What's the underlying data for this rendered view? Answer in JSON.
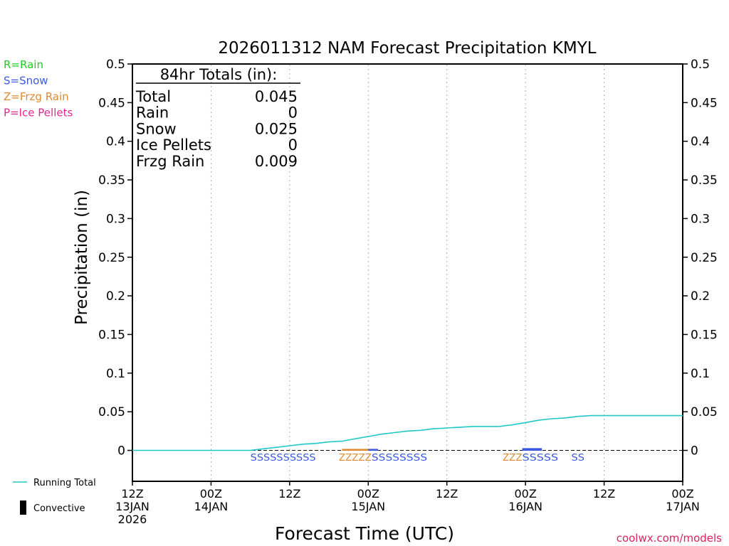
{
  "chart_data": {
    "type": "line",
    "title": "2026011312 NAM Forecast Precipitation KMYL",
    "xlabel": "Forecast Time (UTC)",
    "ylabel": "Precipitation (in)",
    "ylim": [
      -0.04,
      0.5
    ],
    "xlim_hours": [
      0,
      84
    ],
    "y_ticks": [
      {
        "value": 0.5,
        "label": "0.5"
      },
      {
        "value": 0.45,
        "label": "0.45"
      },
      {
        "value": 0.4,
        "label": "0.4"
      },
      {
        "value": 0.35,
        "label": "0.35"
      },
      {
        "value": 0.3,
        "label": "0.3"
      },
      {
        "value": 0.25,
        "label": "0.25"
      },
      {
        "value": 0.2,
        "label": "0.2"
      },
      {
        "value": 0.15,
        "label": "0.15"
      },
      {
        "value": 0.1,
        "label": "0.1"
      },
      {
        "value": 0.05,
        "label": "0.05"
      },
      {
        "value": 0,
        "label": "0"
      }
    ],
    "x_ticks": [
      {
        "hour": 0,
        "lines": [
          "12Z",
          "13JAN",
          "2026"
        ]
      },
      {
        "hour": 12,
        "lines": [
          "00Z",
          "14JAN"
        ]
      },
      {
        "hour": 24,
        "lines": [
          "12Z"
        ]
      },
      {
        "hour": 36,
        "lines": [
          "00Z",
          "15JAN"
        ]
      },
      {
        "hour": 48,
        "lines": [
          "12Z"
        ]
      },
      {
        "hour": 60,
        "lines": [
          "00Z",
          "16JAN"
        ]
      },
      {
        "hour": 72,
        "lines": [
          "12Z"
        ]
      },
      {
        "hour": 84,
        "lines": [
          "00Z",
          "17JAN"
        ]
      }
    ],
    "grid_hours": [
      12,
      24,
      36,
      48,
      60,
      72
    ],
    "series": [
      {
        "name": "Running Total",
        "color": "#20c8c8",
        "x": [
          0,
          12,
          18,
          20,
          22,
          24,
          26,
          28,
          30,
          32,
          34,
          36,
          38,
          40,
          42,
          44,
          46,
          48,
          50,
          52,
          54,
          56,
          58,
          60,
          62,
          64,
          66,
          68,
          70,
          72,
          75,
          78,
          81,
          84
        ],
        "values": [
          0,
          0,
          0,
          0.002,
          0.004,
          0.006,
          0.008,
          0.009,
          0.011,
          0.012,
          0.015,
          0.018,
          0.021,
          0.023,
          0.025,
          0.026,
          0.028,
          0.029,
          0.03,
          0.031,
          0.031,
          0.031,
          0.033,
          0.036,
          0.039,
          0.041,
          0.042,
          0.044,
          0.045,
          0.045,
          0.045,
          0.045,
          0.045,
          0.045
        ]
      }
    ],
    "precip_type_markers": [
      {
        "start_hour": 18,
        "end_hour": 28,
        "text": "SSSSSSSSSS",
        "color": "#3a5ae0"
      },
      {
        "start_hour": 31.5,
        "end_hour": 36.5,
        "text": "ZZZZZ",
        "color": "#e08a30"
      },
      {
        "start_hour": 36.5,
        "end_hour": 45,
        "text": "SSSSSSSS",
        "color": "#3a5ae0"
      },
      {
        "start_hour": 56.5,
        "end_hour": 59.5,
        "text": "ZZZ",
        "color": "#e08a30"
      },
      {
        "start_hour": 59.5,
        "end_hour": 65,
        "text": "SSSSS",
        "color": "#3a5ae0"
      },
      {
        "start_hour": 67,
        "end_hour": 69,
        "text": "SS",
        "color": "#3a5ae0"
      }
    ],
    "type_bars": [
      {
        "start_hour": 32,
        "end_hour": 36,
        "value": 0.001,
        "color": "#e08a30"
      },
      {
        "start_hour": 36,
        "end_hour": 37.5,
        "value": 0.001,
        "color": "#3a5ae0"
      },
      {
        "start_hour": 59.5,
        "end_hour": 62.5,
        "value": 0.002,
        "color": "#3a5ae0"
      }
    ],
    "totals_box": {
      "heading": "84hr Totals (in):",
      "rows": [
        {
          "label": "Total",
          "value": "0.045"
        },
        {
          "label": "Rain",
          "value": "0"
        },
        {
          "label": "Snow",
          "value": "0.025"
        },
        {
          "label": "Ice Pellets",
          "value": "0"
        },
        {
          "label": "Frzg Rain",
          "value": "0.009"
        }
      ]
    },
    "type_legend": [
      {
        "text": "R=Rain",
        "color": "#22cc22"
      },
      {
        "text": "S=Snow",
        "color": "#3a5ae0"
      },
      {
        "text": "Z=Frzg Rain",
        "color": "#e08a30"
      },
      {
        "text": "P=Ice Pellets",
        "color": "#e02890"
      }
    ],
    "line_legend": [
      {
        "text": "Running Total",
        "color": "#20c8c8",
        "symbol": "line"
      },
      {
        "text": "Convective",
        "color": "#000000",
        "symbol": "bar"
      }
    ]
  },
  "credit": "coolwx.com/models"
}
